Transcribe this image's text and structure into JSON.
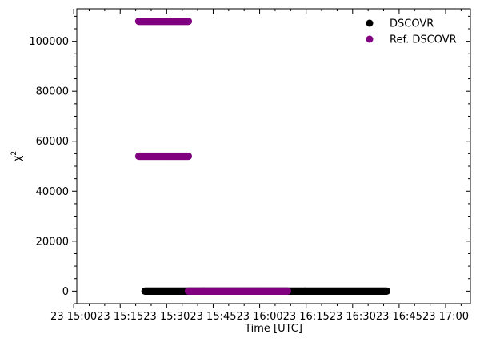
{
  "chart_data": {
    "type": "scatter",
    "xlabel": "Time [UTC]",
    "ylabel": "χ",
    "ylabel_superscript": "2",
    "xlim": [
      "15:01",
      "17:08"
    ],
    "ylim": [
      -5000,
      113000
    ],
    "x_ticks": [
      "23 15:00",
      "23 15:15",
      "23 15:30",
      "23 15:45",
      "23 16:00",
      "23 16:15",
      "23 16:30",
      "23 16:45",
      "23 17:00"
    ],
    "y_ticks": [
      0,
      20000,
      40000,
      60000,
      80000,
      100000
    ],
    "grid": false,
    "legend_position": "top-right",
    "series": [
      {
        "name": "DSCOVR",
        "color": "#000000",
        "segments": [
          {
            "x_start": "15:23",
            "x_end": "16:41",
            "y": 0
          }
        ]
      },
      {
        "name": "Ref. DSCOVR",
        "color": "#800080",
        "segments": [
          {
            "x_start": "15:21",
            "x_end": "15:37",
            "y": 108000
          },
          {
            "x_start": "15:21",
            "x_end": "15:37",
            "y": 54000
          },
          {
            "x_start": "15:37",
            "x_end": "16:09",
            "y": 0
          }
        ]
      }
    ]
  }
}
